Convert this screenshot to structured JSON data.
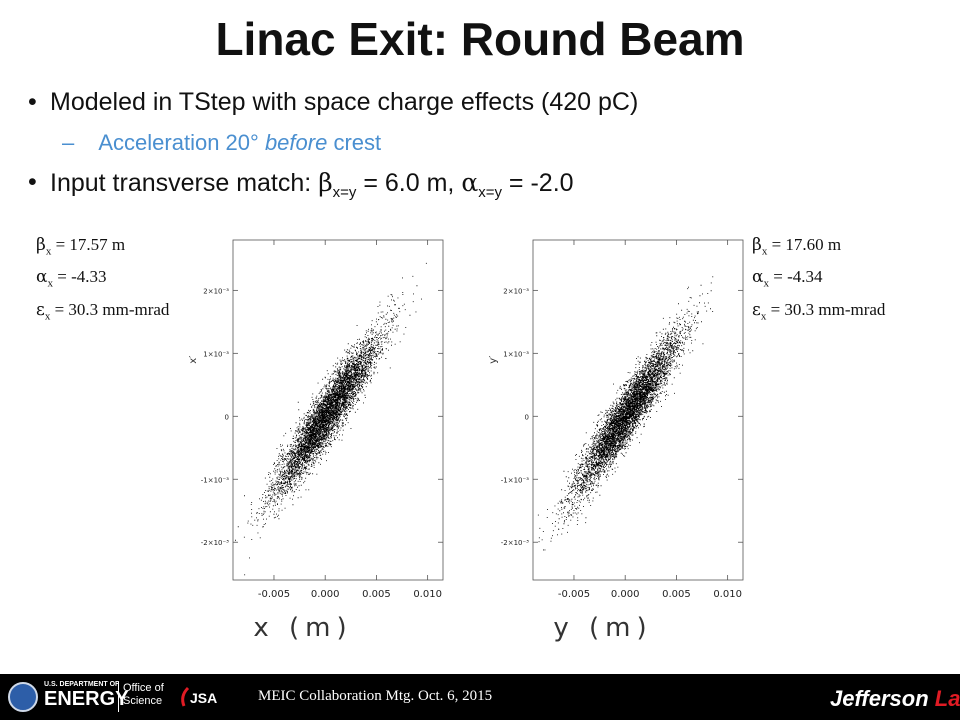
{
  "slide": {
    "title": "Linac Exit: Round Beam",
    "bullets": {
      "b1_marker": "•",
      "b1": "Modeled in TStep with space charge effects (420 pC)",
      "b2_dash": "–",
      "b2_prefix": "Acceleration 20° ",
      "b2_italic": "before",
      "b2_suffix": " crest",
      "b3_marker": "•",
      "b3_prefix": "Input transverse match: ",
      "b3_beta": "β",
      "b3_sub1": "x=y",
      "b3_mid": " = 6.0 m, ",
      "b3_alpha": "α",
      "b3_sub2": "x=y",
      "b3_end": " = -2.0"
    }
  },
  "params_left": {
    "beta_sym": "β",
    "beta_sub": "x",
    "beta_val": " = 17.57 m",
    "alpha_sym": "α",
    "alpha_sub": "x",
    "alpha_val": " = -4.33",
    "eps_sym": "ε",
    "eps_sub": "x",
    "eps_val": " = 30.3 mm-mrad"
  },
  "params_right": {
    "beta_sym": "β",
    "beta_sub": "x",
    "beta_val": " = 17.60 m",
    "alpha_sym": "α",
    "alpha_sub": "x",
    "alpha_val": " = -4.34",
    "eps_sym": "ε",
    "eps_sub": "x",
    "eps_val": " = 30.3 mm-mrad"
  },
  "chart_data": [
    {
      "type": "scatter",
      "title": "",
      "xlabel": "x (m)",
      "ylabel": "x′",
      "xlim": [
        -0.009,
        0.0115
      ],
      "ylim": [
        -0.0026,
        0.0028
      ],
      "xticks": [
        "-0.005",
        "0.000",
        "0.005",
        "0.010"
      ],
      "yticks": [
        "-2×10⁻³",
        "-1×10⁻³",
        "0",
        "1×10⁻³",
        "2×10⁻³"
      ],
      "xtick_values": [
        -0.005,
        0.0,
        0.005,
        0.01
      ],
      "ytick_values": [
        -0.002,
        -0.001,
        0.0,
        0.001,
        0.002
      ],
      "distribution": {
        "slope": 0.232,
        "major_extent_x": [
          -0.0065,
          0.0068
        ],
        "width_y": 0.00022
      },
      "grid": false,
      "color": "#000000"
    },
    {
      "type": "scatter",
      "title": "",
      "xlabel": "y (m)",
      "ylabel": "y′",
      "xlim": [
        -0.009,
        0.0115
      ],
      "ylim": [
        -0.0026,
        0.0028
      ],
      "xticks": [
        "-0.005",
        "0.000",
        "0.005",
        "0.010"
      ],
      "yticks": [
        "-2×10⁻³",
        "-1×10⁻³",
        "0",
        "1×10⁻³",
        "2×10⁻³"
      ],
      "xtick_values": [
        -0.005,
        0.0,
        0.005,
        0.01
      ],
      "ytick_values": [
        -0.002,
        -0.001,
        0.0,
        0.001,
        0.002
      ],
      "distribution": {
        "slope": 0.232,
        "major_extent_x": [
          -0.0065,
          0.0068
        ],
        "width_y": 0.00022
      },
      "grid": false,
      "color": "#000000"
    }
  ],
  "footer": {
    "text": "MEIC Collaboration Mtg. Oct. 6, 2015",
    "doe_small": "U.S. DEPARTMENT OF",
    "doe_energy": "ENERGY",
    "office_line1": "Office of",
    "office_line2": "Science",
    "jsa": "JSA",
    "jlab_a": "Jefferson",
    "jlab_b": " Lab"
  }
}
